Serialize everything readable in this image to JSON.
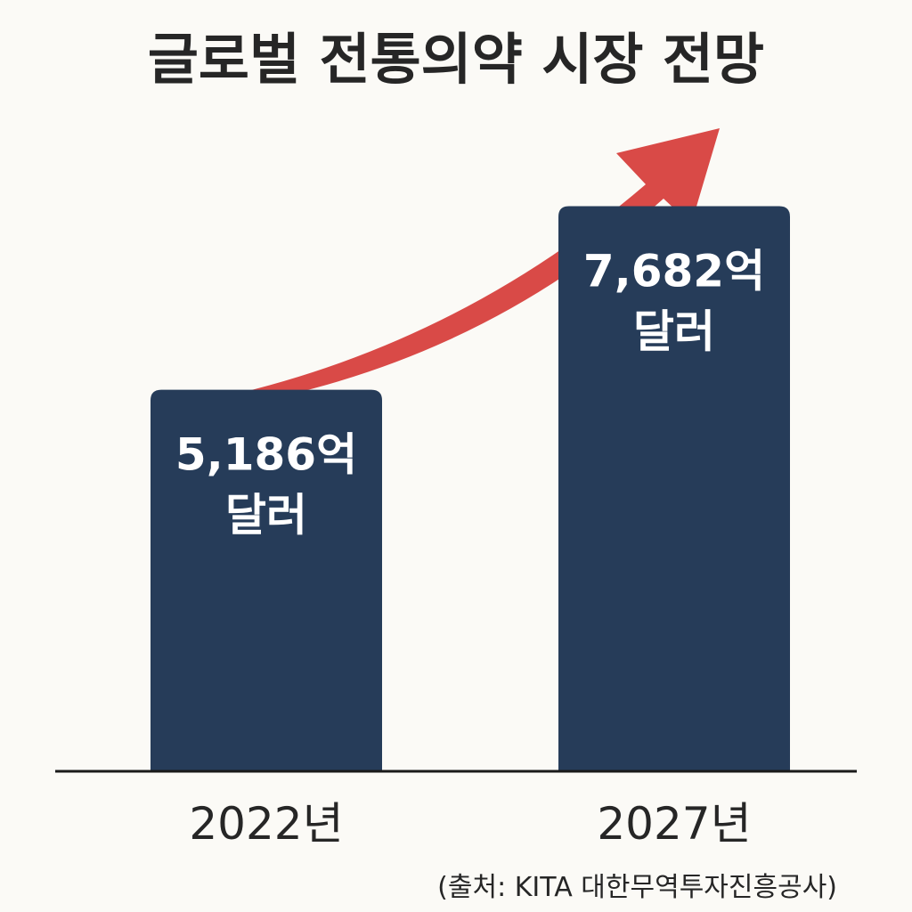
{
  "chart_data": {
    "type": "bar",
    "title": "글로벌 전통의약 시장 전망",
    "categories": [
      "2022년",
      "2027년"
    ],
    "values": [
      5186,
      7682
    ],
    "value_labels": [
      [
        "5,186억",
        "달러"
      ],
      [
        "7,682억",
        "달러"
      ]
    ],
    "ylim": [
      0,
      10000
    ],
    "grid": false,
    "legend": "none",
    "source": "(출처: KITA 대한무역투자진흥공사)",
    "trend_arrow": true,
    "colors": {
      "bar": "#263c59",
      "arrow": "#d94a47",
      "baseline": "#1a1a1a",
      "text": "#262626",
      "bar_text": "#ffffff",
      "background": "#fbfaf6"
    }
  }
}
